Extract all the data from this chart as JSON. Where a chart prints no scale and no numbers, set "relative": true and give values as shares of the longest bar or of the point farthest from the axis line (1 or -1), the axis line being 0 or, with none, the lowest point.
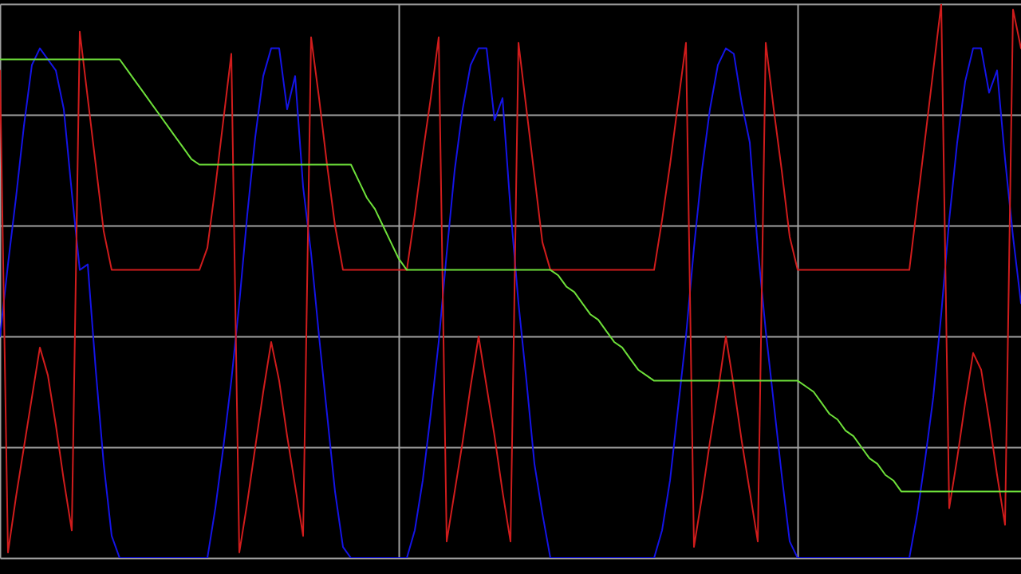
{
  "chart_data": {
    "type": "line",
    "relative": true,
    "grid": true,
    "marker": "none",
    "line_style": "solid",
    "categories": [
      null,
      null,
      null,
      null,
      null,
      null,
      null,
      null,
      null,
      null,
      null,
      null,
      null,
      null,
      null,
      null,
      null,
      null,
      null,
      null,
      null,
      null,
      null,
      null,
      null,
      null,
      null,
      null,
      null,
      null,
      null,
      null,
      null,
      null,
      null,
      null,
      null,
      null,
      null,
      null,
      null,
      null,
      null,
      null,
      null,
      null,
      null,
      null,
      null,
      null,
      null,
      null,
      null,
      null,
      null,
      null,
      null,
      null,
      null,
      null,
      null,
      null,
      null,
      null,
      null,
      null,
      null,
      null,
      null,
      null,
      null,
      null,
      null,
      null,
      null,
      null,
      null,
      null,
      null,
      null,
      null,
      null,
      null,
      null,
      null,
      null,
      null,
      null,
      null,
      null,
      null,
      null,
      null,
      null,
      null,
      null,
      null,
      null,
      null,
      null,
      null,
      null,
      null,
      null,
      null,
      null,
      null,
      null,
      null,
      null,
      null,
      null,
      null,
      null,
      null,
      null,
      null,
      null,
      null,
      null,
      null,
      null,
      null,
      null,
      null,
      null,
      null,
      null,
      null
    ],
    "series": [
      {
        "color": "#1414e6",
        "values": [
          0.4,
          0.53,
          0.65,
          0.78,
          0.89,
          0.92,
          0.9,
          0.88,
          0.81,
          0.66,
          0.52,
          0.53,
          0.34,
          0.17,
          0.04,
          0,
          0,
          0,
          0,
          0,
          0,
          0,
          0,
          0,
          0,
          0,
          0,
          0.09,
          0.2,
          0.32,
          0.46,
          0.62,
          0.76,
          0.87,
          0.92,
          0.92,
          0.81,
          0.87,
          0.67,
          0.55,
          0.4,
          0.26,
          0.12,
          0.02,
          0,
          0,
          0,
          0,
          0,
          0,
          0,
          0,
          0.05,
          0.14,
          0.26,
          0.39,
          0.55,
          0.7,
          0.81,
          0.89,
          0.92,
          0.92,
          0.79,
          0.83,
          0.63,
          0.46,
          0.32,
          0.17,
          0.08,
          0,
          0,
          0,
          0,
          0,
          0,
          0,
          0,
          0,
          0,
          0,
          0,
          0,
          0,
          0.05,
          0.14,
          0.27,
          0.4,
          0.56,
          0.7,
          0.81,
          0.89,
          0.92,
          0.91,
          0.82,
          0.75,
          0.56,
          0.41,
          0.28,
          0.15,
          0.03,
          0,
          0,
          0,
          0,
          0,
          0,
          0,
          0,
          0,
          0,
          0,
          0,
          0,
          0,
          0,
          0.08,
          0.18,
          0.29,
          0.44,
          0.61,
          0.75,
          0.86,
          0.92,
          0.92,
          0.84,
          0.88,
          0.72,
          0.58,
          0.46
        ]
      },
      {
        "color": "#d01c1c",
        "values": [
          0.88,
          0.01,
          0.11,
          0.2,
          0.29,
          0.38,
          0.33,
          0.24,
          0.14,
          0.05,
          0.95,
          0.83,
          0.71,
          0.59,
          0.52,
          0.52,
          0.52,
          0.52,
          0.52,
          0.52,
          0.52,
          0.52,
          0.52,
          0.52,
          0.52,
          0.52,
          0.56,
          0.67,
          0.79,
          0.91,
          0.01,
          0.1,
          0.2,
          0.3,
          0.39,
          0.32,
          0.22,
          0.13,
          0.04,
          0.94,
          0.83,
          0.71,
          0.6,
          0.52,
          0.52,
          0.52,
          0.52,
          0.52,
          0.52,
          0.52,
          0.52,
          0.52,
          0.62,
          0.73,
          0.83,
          0.94,
          0.03,
          0.12,
          0.21,
          0.31,
          0.4,
          0.31,
          0.22,
          0.12,
          0.03,
          0.93,
          0.81,
          0.69,
          0.57,
          0.52,
          0.52,
          0.52,
          0.52,
          0.52,
          0.52,
          0.52,
          0.52,
          0.52,
          0.52,
          0.52,
          0.52,
          0.52,
          0.52,
          0.61,
          0.71,
          0.82,
          0.93,
          0.02,
          0.11,
          0.21,
          0.3,
          0.4,
          0.31,
          0.21,
          0.12,
          0.03,
          0.93,
          0.81,
          0.7,
          0.58,
          0.52,
          0.52,
          0.52,
          0.52,
          0.52,
          0.52,
          0.52,
          0.52,
          0.52,
          0.52,
          0.52,
          0.52,
          0.52,
          0.52,
          0.52,
          0.64,
          0.76,
          0.88,
          1.0,
          0.09,
          0.18,
          0.28,
          0.37,
          0.34,
          0.25,
          0.15,
          0.06,
          0.99,
          0.92
        ]
      },
      {
        "color": "#6ee03a",
        "values": [
          0.9,
          0.9,
          0.9,
          0.9,
          0.9,
          0.9,
          0.9,
          0.9,
          0.9,
          0.9,
          0.9,
          0.9,
          0.9,
          0.9,
          0.9,
          0.9,
          0.88,
          0.86,
          0.84,
          0.82,
          0.8,
          0.78,
          0.76,
          0.74,
          0.72,
          0.71,
          0.71,
          0.71,
          0.71,
          0.71,
          0.71,
          0.71,
          0.71,
          0.71,
          0.71,
          0.71,
          0.71,
          0.71,
          0.71,
          0.71,
          0.71,
          0.71,
          0.71,
          0.71,
          0.71,
          0.68,
          0.65,
          0.63,
          0.6,
          0.57,
          0.54,
          0.52,
          0.52,
          0.52,
          0.52,
          0.52,
          0.52,
          0.52,
          0.52,
          0.52,
          0.52,
          0.52,
          0.52,
          0.52,
          0.52,
          0.52,
          0.52,
          0.52,
          0.52,
          0.52,
          0.51,
          0.49,
          0.48,
          0.46,
          0.44,
          0.43,
          0.41,
          0.39,
          0.38,
          0.36,
          0.34,
          0.33,
          0.32,
          0.32,
          0.32,
          0.32,
          0.32,
          0.32,
          0.32,
          0.32,
          0.32,
          0.32,
          0.32,
          0.32,
          0.32,
          0.32,
          0.32,
          0.32,
          0.32,
          0.32,
          0.32,
          0.31,
          0.3,
          0.28,
          0.26,
          0.25,
          0.23,
          0.22,
          0.2,
          0.18,
          0.17,
          0.15,
          0.14,
          0.12,
          0.12,
          0.12,
          0.12,
          0.12,
          0.12,
          0.12,
          0.12,
          0.12,
          0.12,
          0.12,
          0.12,
          0.12,
          0.12,
          0.12,
          0.12
        ]
      }
    ]
  }
}
